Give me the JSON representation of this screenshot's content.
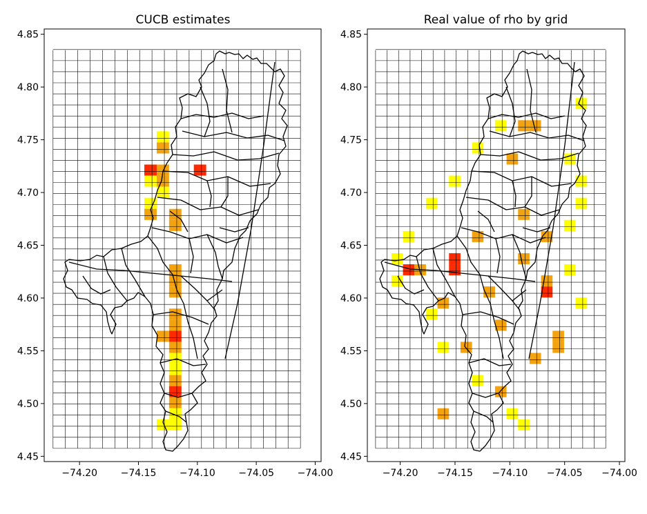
{
  "chart_data": [
    {
      "type": "heatmap",
      "title": "CUCB estimates",
      "xlim": [
        -74.23,
        -73.995
      ],
      "ylim": [
        4.445,
        4.855
      ],
      "xticks": [
        "-74.20",
        "-74.15",
        "-74.10",
        "-74.05",
        "-74.00"
      ],
      "yticks": [
        "4.85",
        "4.80",
        "4.75",
        "4.70",
        "4.65",
        "4.60",
        "4.55",
        "4.50",
        "4.45"
      ],
      "grid": {
        "x_range": [
          -74.2225,
          -74.0125
        ],
        "y_range": [
          4.4575,
          4.835
        ],
        "cell_size": 0.0105
      },
      "cells": [
        {
          "x": -74.1345,
          "y": 4.7475,
          "level": "low"
        },
        {
          "x": -74.1345,
          "y": 4.737,
          "level": "mid"
        },
        {
          "x": -74.145,
          "y": 4.716,
          "level": "high"
        },
        {
          "x": -74.1345,
          "y": 4.716,
          "level": "mid"
        },
        {
          "x": -74.145,
          "y": 4.7055,
          "level": "low"
        },
        {
          "x": -74.1345,
          "y": 4.7055,
          "level": "mid"
        },
        {
          "x": -74.1345,
          "y": 4.695,
          "level": "low"
        },
        {
          "x": -74.145,
          "y": 4.6845,
          "level": "low"
        },
        {
          "x": -74.145,
          "y": 4.674,
          "level": "mid"
        },
        {
          "x": -74.124,
          "y": 4.674,
          "level": "mid"
        },
        {
          "x": -74.124,
          "y": 4.6635,
          "level": "mid"
        },
        {
          "x": -74.103,
          "y": 4.716,
          "level": "high"
        },
        {
          "x": -74.124,
          "y": 4.6215,
          "level": "mid"
        },
        {
          "x": -74.124,
          "y": 4.611,
          "level": "mid"
        },
        {
          "x": -74.124,
          "y": 4.6005,
          "level": "mid"
        },
        {
          "x": -74.124,
          "y": 4.5795,
          "level": "mid"
        },
        {
          "x": -74.124,
          "y": 4.569,
          "level": "mid"
        },
        {
          "x": -74.124,
          "y": 4.5585,
          "level": "high"
        },
        {
          "x": -74.1345,
          "y": 4.5585,
          "level": "mid"
        },
        {
          "x": -74.124,
          "y": 4.548,
          "level": "mid"
        },
        {
          "x": -74.124,
          "y": 4.5375,
          "level": "low"
        },
        {
          "x": -74.124,
          "y": 4.527,
          "level": "low"
        },
        {
          "x": -74.124,
          "y": 4.5165,
          "level": "mid"
        },
        {
          "x": -74.124,
          "y": 4.506,
          "level": "high"
        },
        {
          "x": -74.124,
          "y": 4.4955,
          "level": "mid"
        },
        {
          "x": -74.124,
          "y": 4.485,
          "level": "low"
        },
        {
          "x": -74.1345,
          "y": 4.4745,
          "level": "low"
        },
        {
          "x": -74.124,
          "y": 4.4745,
          "level": "low"
        }
      ]
    },
    {
      "type": "heatmap",
      "title": "Real value of rho by grid",
      "xlim": [
        -74.23,
        -73.995
      ],
      "ylim": [
        4.445,
        4.855
      ],
      "xticks": [
        "-74.20",
        "-74.15",
        "-74.10",
        "-74.05",
        "-74.00"
      ],
      "yticks": [
        "4.85",
        "4.80",
        "4.75",
        "4.70",
        "4.65",
        "4.60",
        "4.55",
        "4.50",
        "4.45"
      ],
      "grid": {
        "x_range": [
          -74.2225,
          -74.0125
        ],
        "y_range": [
          4.4575,
          4.835
        ],
        "cell_size": 0.0105
      },
      "cells": [
        {
          "x": -74.04,
          "y": 4.779,
          "level": "low"
        },
        {
          "x": -74.082,
          "y": 4.758,
          "level": "mid"
        },
        {
          "x": -74.0925,
          "y": 4.758,
          "level": "mid"
        },
        {
          "x": -74.166,
          "y": 4.485,
          "level": "mid"
        },
        {
          "x": -74.04,
          "y": 4.59,
          "level": "low"
        },
        {
          "x": -74.061,
          "y": 4.5585,
          "level": "mid"
        },
        {
          "x": -74.061,
          "y": 4.548,
          "level": "mid"
        },
        {
          "x": -74.1555,
          "y": 4.632,
          "level": "high"
        },
        {
          "x": -74.1555,
          "y": 4.6215,
          "level": "high"
        },
        {
          "x": -74.1975,
          "y": 4.6215,
          "level": "high"
        },
        {
          "x": -74.0715,
          "y": 4.6005,
          "level": "high"
        },
        {
          "x": -74.0715,
          "y": 4.611,
          "level": "mid"
        },
        {
          "x": -74.187,
          "y": 4.6215,
          "level": "mid"
        },
        {
          "x": -74.124,
          "y": 4.6005,
          "level": "mid"
        },
        {
          "x": -74.1135,
          "y": 4.569,
          "level": "mid"
        },
        {
          "x": -74.103,
          "y": 4.7265,
          "level": "mid"
        },
        {
          "x": -74.0925,
          "y": 4.674,
          "level": "mid"
        },
        {
          "x": -74.1345,
          "y": 4.653,
          "level": "mid"
        },
        {
          "x": -74.166,
          "y": 4.59,
          "level": "mid"
        },
        {
          "x": -74.145,
          "y": 4.548,
          "level": "mid"
        },
        {
          "x": -74.1135,
          "y": 4.506,
          "level": "mid"
        },
        {
          "x": -74.082,
          "y": 4.5375,
          "level": "mid"
        },
        {
          "x": -74.0715,
          "y": 4.653,
          "level": "mid"
        },
        {
          "x": -74.0925,
          "y": 4.632,
          "level": "mid"
        },
        {
          "x": -74.208,
          "y": 4.611,
          "level": "low"
        },
        {
          "x": -74.208,
          "y": 4.632,
          "level": "low"
        },
        {
          "x": -74.1975,
          "y": 4.653,
          "level": "low"
        },
        {
          "x": -74.1765,
          "y": 4.6845,
          "level": "low"
        },
        {
          "x": -74.1555,
          "y": 4.7055,
          "level": "low"
        },
        {
          "x": -74.1345,
          "y": 4.737,
          "level": "low"
        },
        {
          "x": -74.1135,
          "y": 4.758,
          "level": "low"
        },
        {
          "x": -74.0505,
          "y": 4.7265,
          "level": "low"
        },
        {
          "x": -74.04,
          "y": 4.7055,
          "level": "low"
        },
        {
          "x": -74.0505,
          "y": 4.6635,
          "level": "low"
        },
        {
          "x": -74.04,
          "y": 4.6845,
          "level": "low"
        },
        {
          "x": -74.0505,
          "y": 4.6215,
          "level": "low"
        },
        {
          "x": -74.1345,
          "y": 4.5165,
          "level": "low"
        },
        {
          "x": -74.103,
          "y": 4.485,
          "level": "low"
        },
        {
          "x": -74.0925,
          "y": 4.4745,
          "level": "low"
        },
        {
          "x": -74.166,
          "y": 4.548,
          "level": "low"
        },
        {
          "x": -74.1765,
          "y": 4.5795,
          "level": "low"
        }
      ]
    }
  ]
}
